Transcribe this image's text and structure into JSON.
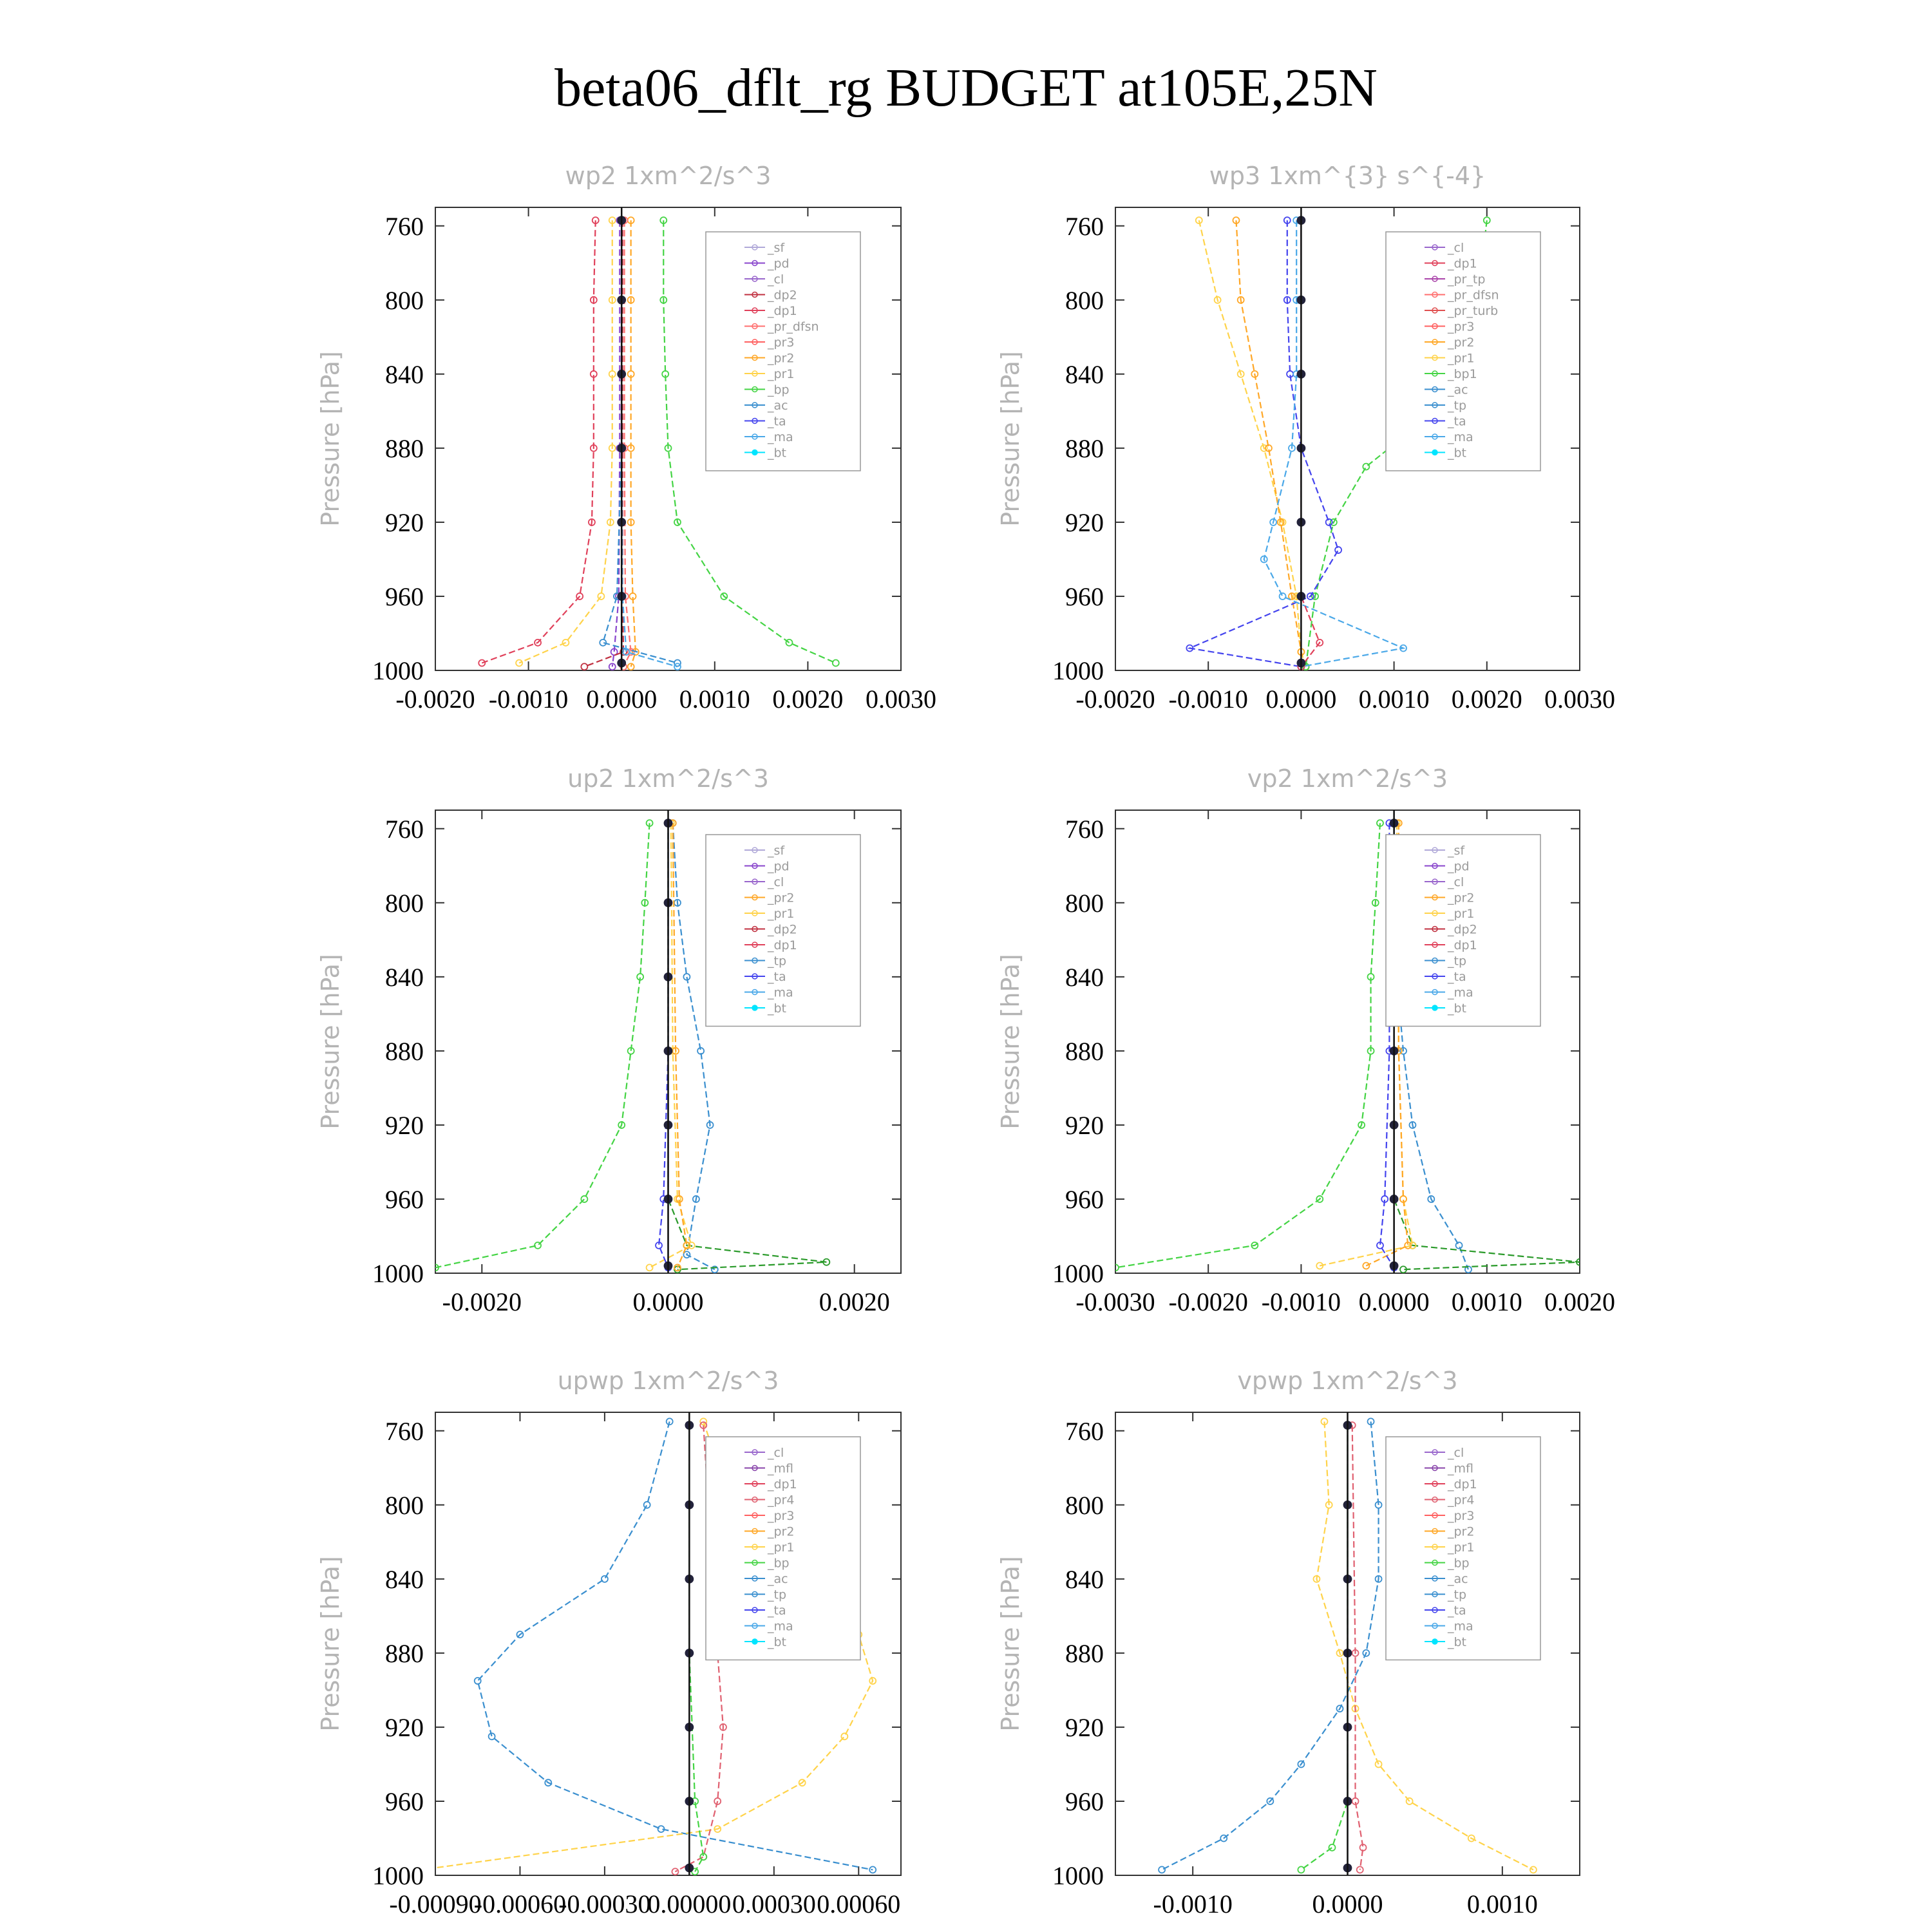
{
  "title": "beta06_dflt_rg  BUDGET at105E,25N",
  "chart_data": [
    {
      "type": "line",
      "title": "wp2   1xm^2/s^3",
      "ylabel": "Pressure [hPa]",
      "xlim": [
        -0.002,
        0.003
      ],
      "ylim": [
        1000,
        750
      ],
      "xticks": [
        "-0.0020",
        "-0.0010",
        "0.0000",
        "0.0010",
        "0.0020",
        "0.0030"
      ],
      "yticks": [
        "760",
        "800",
        "840",
        "880",
        "920",
        "960",
        "1000"
      ],
      "legend": [
        "_sf",
        "_pd",
        "_cl",
        "_dp2",
        "_dp1",
        "_pr_dfsn",
        "_pr3",
        "_pr2",
        "_pr1",
        "_bp",
        "_ac",
        "_ta",
        "_ma",
        "_bt"
      ],
      "series": [
        {
          "name": "_dp1",
          "color": "#e0405a",
          "p": [
            757,
            800,
            840,
            880,
            920,
            960,
            985,
            996
          ],
          "v": [
            -0.00028,
            -0.0003,
            -0.0003,
            -0.0003,
            -0.00032,
            -0.00045,
            -0.0009,
            -0.0015
          ]
        },
        {
          "name": "_pr1",
          "color": "#ffd34a",
          "p": [
            757,
            800,
            840,
            880,
            920,
            960,
            985,
            996
          ],
          "v": [
            -0.0001,
            -0.0001,
            -0.0001,
            -0.0001,
            -0.00012,
            -0.00022,
            -0.0006,
            -0.0011
          ]
        },
        {
          "name": "_pr2",
          "color": "#ffa726",
          "p": [
            757,
            800,
            840,
            880,
            920,
            960,
            990,
            998
          ],
          "v": [
            0.0001,
            0.0001,
            0.0001,
            0.0001,
            0.0001,
            0.00012,
            0.00015,
            0.0001
          ]
        },
        {
          "name": "_bp",
          "color": "#44d444",
          "p": [
            757,
            800,
            840,
            880,
            920,
            960,
            985,
            996
          ],
          "v": [
            0.00045,
            0.00045,
            0.00047,
            0.0005,
            0.0006,
            0.0011,
            0.0018,
            0.0023
          ]
        },
        {
          "name": "_pr_dfsn",
          "color": "#ff6f6f",
          "p": [
            757,
            880,
            960,
            990,
            998
          ],
          "v": [
            3e-05,
            3e-05,
            4e-05,
            0.0001,
            2e-05
          ]
        },
        {
          "name": "_pd",
          "color": "#8844cc",
          "p": [
            757,
            880,
            960,
            990,
            998
          ],
          "v": [
            -2e-05,
            -2e-05,
            -3e-05,
            -8e-05,
            -0.0001
          ]
        },
        {
          "name": "_dp2",
          "color": "#c03040",
          "p": [
            757,
            880,
            960,
            990,
            998
          ],
          "v": [
            1e-05,
            1e-05,
            1e-05,
            2e-05,
            -0.0004
          ]
        },
        {
          "name": "_ac",
          "color": "#3a8fcf",
          "p": [
            757,
            880,
            960,
            985,
            996
          ],
          "v": [
            0,
            0,
            -5e-05,
            -0.0002,
            0.0006
          ]
        },
        {
          "name": "_ma",
          "color": "#4aa8e8",
          "p": [
            757,
            880,
            960,
            990,
            998
          ],
          "v": [
            0,
            0,
            1e-05,
            5e-05,
            0.0006
          ]
        },
        {
          "name": "_bt",
          "color": "#22223a",
          "p": [
            757,
            800,
            840,
            880,
            920,
            960,
            996
          ],
          "v": [
            0,
            0,
            0,
            0,
            0,
            0,
            0
          ]
        }
      ]
    },
    {
      "type": "line",
      "title": "wp3   1xm^{3} s^{-4}",
      "ylabel": "Pressure [hPa]",
      "xlim": [
        -0.002,
        0.003
      ],
      "ylim": [
        1000,
        750
      ],
      "xticks": [
        "-0.0020",
        "-0.0010",
        "0.0000",
        "0.0010",
        "0.0020",
        "0.0030"
      ],
      "yticks": [
        "760",
        "800",
        "840",
        "880",
        "920",
        "960",
        "1000"
      ],
      "legend": [
        "_cl",
        "_dp1",
        "_pr_tp",
        "_pr_dfsn",
        "_pr_turb",
        "_pr3",
        "_pr2",
        "_pr1",
        "_bp1",
        "_ac",
        "_tp",
        "_ta",
        "_ma",
        "_bt"
      ],
      "series": [
        {
          "name": "_pr1",
          "color": "#ffd34a",
          "p": [
            757,
            800,
            840,
            880,
            920,
            960,
            990,
            998
          ],
          "v": [
            -0.0011,
            -0.0009,
            -0.00065,
            -0.0004,
            -0.0002,
            -5e-05,
            0,
            5e-05
          ]
        },
        {
          "name": "_pr2",
          "color": "#ffa726",
          "p": [
            757,
            800,
            840,
            880,
            920,
            960,
            990,
            998
          ],
          "v": [
            -0.0007,
            -0.00065,
            -0.0005,
            -0.00035,
            -0.00022,
            -0.0001,
            0,
            5e-05
          ]
        },
        {
          "name": "_bp1",
          "color": "#44d444",
          "p": [
            757,
            800,
            840,
            870,
            890,
            920,
            960,
            998
          ],
          "v": [
            0.002,
            0.0019,
            0.0017,
            0.0012,
            0.0007,
            0.00035,
            0.00015,
            5e-05
          ]
        },
        {
          "name": "_ta",
          "color": "#4444ee",
          "p": [
            757,
            800,
            840,
            880,
            920,
            935,
            960,
            988,
            998
          ],
          "v": [
            -0.00015,
            -0.00015,
            -0.00012,
            0,
            0.0003,
            0.0004,
            0.0001,
            -0.0012,
            0
          ]
        },
        {
          "name": "_tp",
          "color": "#4aa8e8",
          "p": [
            757,
            800,
            840,
            880,
            920,
            940,
            960,
            988,
            998
          ],
          "v": [
            -5e-05,
            -5e-05,
            -5e-05,
            -0.0001,
            -0.0003,
            -0.0004,
            -0.0002,
            0.0011,
            0
          ]
        },
        {
          "name": "_dp1",
          "color": "#e0405a",
          "p": [
            757,
            880,
            960,
            985,
            998
          ],
          "v": [
            0,
            0,
            0,
            0.0002,
            0
          ]
        },
        {
          "name": "_bt",
          "color": "#22223a",
          "p": [
            757,
            800,
            840,
            880,
            920,
            960,
            996
          ],
          "v": [
            0,
            0,
            0,
            0,
            0,
            0,
            0
          ]
        }
      ]
    },
    {
      "type": "line",
      "title": "up2   1xm^2/s^3",
      "ylabel": "Pressure [hPa]",
      "xlim": [
        -0.0025,
        0.0025
      ],
      "ylim": [
        1000,
        750
      ],
      "xticks": [
        "-0.0020",
        "0.0000",
        "0.0020"
      ],
      "yticks": [
        "760",
        "800",
        "840",
        "880",
        "920",
        "960",
        "1000"
      ],
      "legend": [
        "_sf",
        "_pd",
        "_cl",
        "_pr2",
        "_pr1",
        "_dp2",
        "_dp1",
        "_tp",
        "_ta",
        "_ma",
        "_bt"
      ],
      "series": [
        {
          "name": "_dp1",
          "color": "#44d444",
          "p": [
            757,
            800,
            840,
            880,
            920,
            960,
            985,
            997
          ],
          "v": [
            -0.0002,
            -0.00025,
            -0.0003,
            -0.0004,
            -0.0005,
            -0.0009,
            -0.0014,
            -0.0025
          ]
        },
        {
          "name": "_tp",
          "color": "#3a8fcf",
          "p": [
            757,
            800,
            840,
            880,
            920,
            960,
            990,
            998
          ],
          "v": [
            5e-05,
            0.0001,
            0.0002,
            0.00035,
            0.00045,
            0.0003,
            0.0002,
            0.0005
          ]
        },
        {
          "name": "_dp2",
          "color": "#2a9a2a",
          "p": [
            757,
            880,
            960,
            985,
            994,
            998
          ],
          "v": [
            0,
            0,
            0,
            0.0002,
            0.0017,
            0.0001
          ]
        },
        {
          "name": "_pr1",
          "color": "#ffd34a",
          "p": [
            757,
            880,
            960,
            985,
            997
          ],
          "v": [
            3e-05,
            5e-05,
            0.0001,
            0.00025,
            -0.0002
          ]
        },
        {
          "name": "_pr2",
          "color": "#ffa726",
          "p": [
            757,
            880,
            960,
            985,
            997
          ],
          "v": [
            5e-05,
            8e-05,
            0.00012,
            0.0002,
            0.0001
          ]
        },
        {
          "name": "_ta",
          "color": "#4444ee",
          "p": [
            757,
            880,
            960,
            985,
            997
          ],
          "v": [
            0,
            0,
            -5e-05,
            -0.0001,
            0
          ]
        },
        {
          "name": "_bt",
          "color": "#22223a",
          "p": [
            757,
            800,
            840,
            880,
            920,
            960,
            996
          ],
          "v": [
            0,
            0,
            0,
            0,
            0,
            0,
            0
          ]
        }
      ]
    },
    {
      "type": "line",
      "title": "vp2   1xm^2/s^3",
      "ylabel": "Pressure [hPa]",
      "xlim": [
        -0.003,
        0.002
      ],
      "ylim": [
        1000,
        750
      ],
      "xticks": [
        "-0.0030",
        "-0.0020",
        "-0.0010",
        "0.0000",
        "0.0010",
        "0.0020"
      ],
      "yticks": [
        "760",
        "800",
        "840",
        "880",
        "920",
        "960",
        "1000"
      ],
      "legend": [
        "_sf",
        "_pd",
        "_cl",
        "_pr2",
        "_pr1",
        "_dp2",
        "_dp1",
        "_tp",
        "_ta",
        "_ma",
        "_bt"
      ],
      "series": [
        {
          "name": "_dp1",
          "color": "#44d444",
          "p": [
            757,
            800,
            840,
            880,
            920,
            960,
            985,
            997
          ],
          "v": [
            -0.00015,
            -0.0002,
            -0.00025,
            -0.00025,
            -0.00035,
            -0.0008,
            -0.0015,
            -0.003
          ]
        },
        {
          "name": "_tp",
          "color": "#3a8fcf",
          "p": [
            757,
            800,
            840,
            880,
            920,
            960,
            985,
            998
          ],
          "v": [
            0,
            0,
            3e-05,
            0.0001,
            0.0002,
            0.0004,
            0.0007,
            0.0008
          ]
        },
        {
          "name": "_dp2",
          "color": "#2a9a2a",
          "p": [
            757,
            880,
            960,
            985,
            994,
            998
          ],
          "v": [
            0,
            0,
            0,
            0.0002,
            0.002,
            0.0001
          ]
        },
        {
          "name": "_pr1",
          "color": "#ffd34a",
          "p": [
            757,
            880,
            960,
            985,
            996
          ],
          "v": [
            3e-05,
            5e-05,
            0.0001,
            0.0002,
            -0.0008
          ]
        },
        {
          "name": "_pr2",
          "color": "#ffa726",
          "p": [
            757,
            880,
            960,
            985,
            996
          ],
          "v": [
            5e-05,
            5e-05,
            0.0001,
            0.00015,
            -0.0003
          ]
        },
        {
          "name": "_ta",
          "color": "#4444ee",
          "p": [
            757,
            880,
            960,
            985,
            997
          ],
          "v": [
            -5e-05,
            -5e-05,
            -0.0001,
            -0.00015,
            0
          ]
        },
        {
          "name": "_bt",
          "color": "#22223a",
          "p": [
            757,
            800,
            840,
            880,
            920,
            960,
            996
          ],
          "v": [
            0,
            0,
            0,
            0,
            0,
            0,
            0
          ]
        }
      ]
    },
    {
      "type": "line",
      "title": "upwp   1xm^2/s^3",
      "ylabel": "Pressure [hPa]",
      "xlim": [
        -0.0009,
        0.00075
      ],
      "ylim": [
        1000,
        750
      ],
      "xticks": [
        "-0.00090",
        "-0.00060",
        "-0.00030",
        "0.00000",
        "0.00030",
        "0.00060"
      ],
      "yticks": [
        "760",
        "800",
        "840",
        "880",
        "920",
        "960",
        "1000"
      ],
      "legend": [
        "_cl",
        "_mfl",
        "_dp1",
        "_pr4",
        "_pr3",
        "_pr2",
        "_pr1",
        "_bp",
        "_ac",
        "_tp",
        "_ta",
        "_ma",
        "_bt"
      ],
      "series": [
        {
          "name": "_tp",
          "color": "#3a8fcf",
          "p": [
            755,
            800,
            840,
            870,
            895,
            925,
            950,
            975,
            997
          ],
          "v": [
            -7e-05,
            -0.00015,
            -0.0003,
            -0.0006,
            -0.00075,
            -0.0007,
            -0.0005,
            -0.0001,
            0.00065
          ]
        },
        {
          "name": "_pr1",
          "color": "#ffd34a",
          "p": [
            755,
            800,
            840,
            870,
            895,
            925,
            950,
            975,
            997
          ],
          "v": [
            5e-05,
            0.00015,
            0.0003,
            0.0006,
            0.00065,
            0.00055,
            0.0004,
            0.0001,
            -0.00095
          ]
        },
        {
          "name": "_pr4",
          "color": "#e06070",
          "p": [
            757,
            880,
            920,
            960,
            990,
            998
          ],
          "v": [
            5e-05,
            0.0001,
            0.00012,
            0.0001,
            5e-05,
            -5e-05
          ]
        },
        {
          "name": "_bp",
          "color": "#44d444",
          "p": [
            757,
            880,
            960,
            990,
            998
          ],
          "v": [
            0,
            0,
            2e-05,
            5e-05,
            2e-05
          ]
        },
        {
          "name": "_bt",
          "color": "#22223a",
          "p": [
            757,
            800,
            840,
            880,
            920,
            960,
            996
          ],
          "v": [
            0,
            0,
            0,
            0,
            0,
            0,
            0
          ]
        }
      ]
    },
    {
      "type": "line",
      "title": "vpwp   1xm^2/s^3",
      "ylabel": "Pressure [hPa]",
      "xlim": [
        -0.0015,
        0.0015
      ],
      "ylim": [
        1000,
        750
      ],
      "xticks": [
        "-0.0010",
        "0.0000",
        "0.0010"
      ],
      "yticks": [
        "760",
        "800",
        "840",
        "880",
        "920",
        "960",
        "1000"
      ],
      "legend": [
        "_cl",
        "_mfl",
        "_dp1",
        "_pr4",
        "_pr3",
        "_pr2",
        "_pr1",
        "_bp",
        "_ac",
        "_tp",
        "_ta",
        "_ma",
        "_bt"
      ],
      "series": [
        {
          "name": "_pr1",
          "color": "#ffd34a",
          "p": [
            755,
            800,
            840,
            880,
            910,
            940,
            960,
            980,
            997
          ],
          "v": [
            -0.00015,
            -0.00012,
            -0.0002,
            -5e-05,
            5e-05,
            0.0002,
            0.0004,
            0.0008,
            0.0012
          ]
        },
        {
          "name": "_tp",
          "color": "#3a8fcf",
          "p": [
            755,
            800,
            840,
            880,
            910,
            940,
            960,
            980,
            997
          ],
          "v": [
            0.00015,
            0.0002,
            0.0002,
            0.00012,
            -5e-05,
            -0.0003,
            -0.0005,
            -0.0008,
            -0.0012
          ]
        },
        {
          "name": "_bp",
          "color": "#44d444",
          "p": [
            757,
            880,
            960,
            985,
            997
          ],
          "v": [
            0,
            0,
            0,
            -0.0001,
            -0.0003
          ]
        },
        {
          "name": "_pr4",
          "color": "#e06070",
          "p": [
            757,
            880,
            960,
            985,
            997
          ],
          "v": [
            3e-05,
            5e-05,
            5e-05,
            0.0001,
            8e-05
          ]
        },
        {
          "name": "_bt",
          "color": "#22223a",
          "p": [
            757,
            800,
            840,
            880,
            920,
            960,
            996
          ],
          "v": [
            0,
            0,
            0,
            0,
            0,
            0,
            0
          ]
        }
      ]
    }
  ]
}
